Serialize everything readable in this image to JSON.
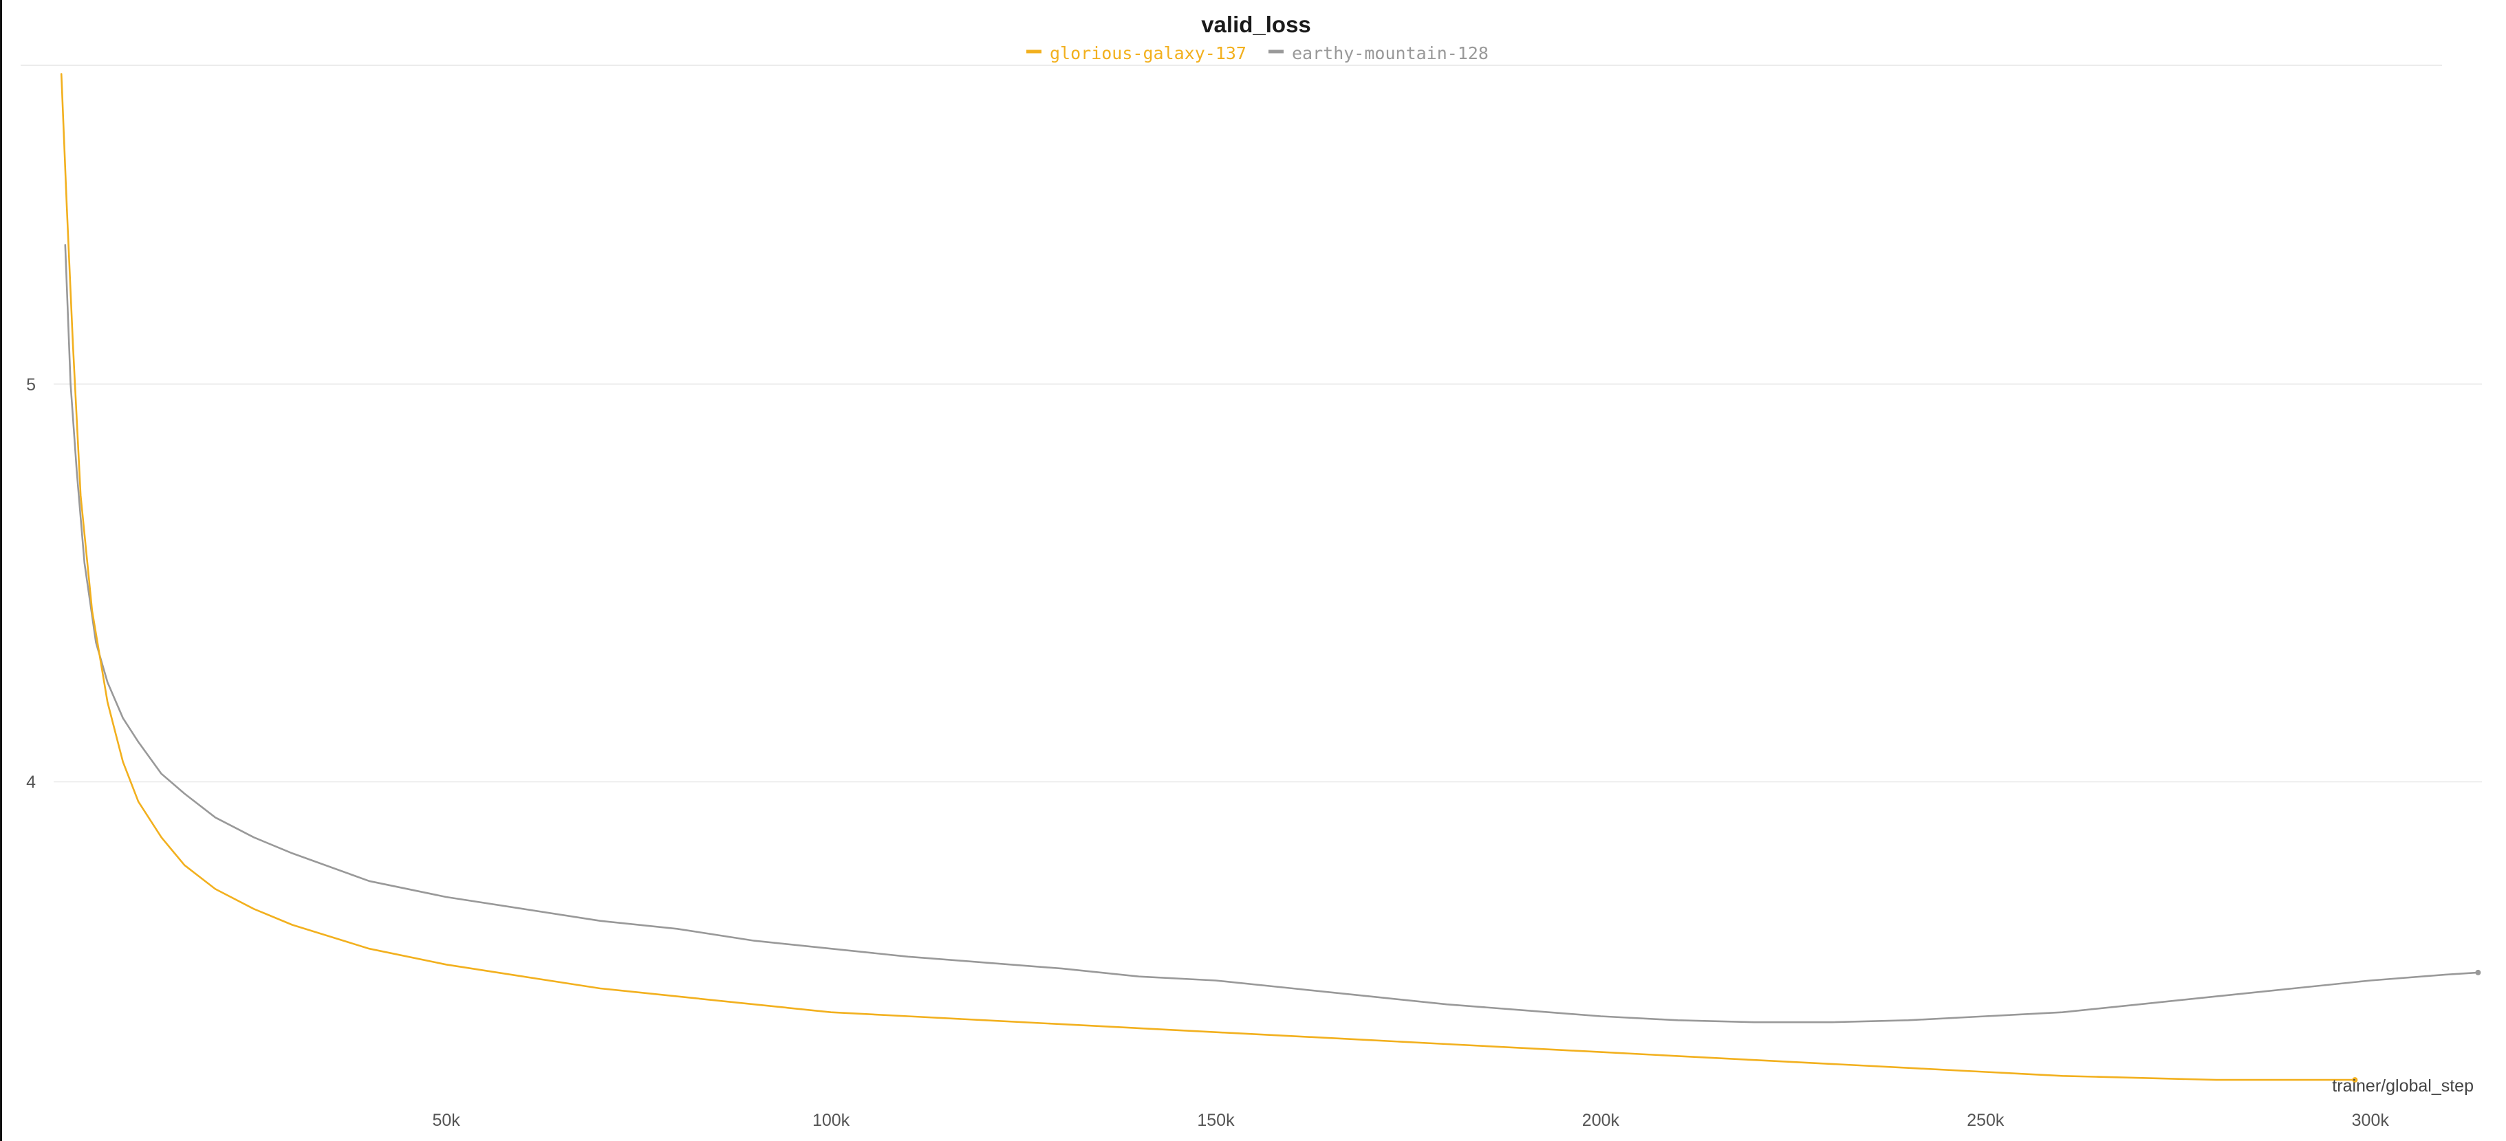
{
  "chart_data": {
    "type": "line",
    "title": "valid_loss",
    "xlabel": "trainer/global_step",
    "ylabel": "",
    "xlim": [
      -1000,
      314500
    ],
    "ylim": [
      3.2,
      5.8
    ],
    "x_ticks": [
      {
        "value": 50000,
        "label": "50k"
      },
      {
        "value": 100000,
        "label": "100k"
      },
      {
        "value": 150000,
        "label": "150k"
      },
      {
        "value": 200000,
        "label": "200k"
      },
      {
        "value": 250000,
        "label": "250k"
      },
      {
        "value": 300000,
        "label": "300k"
      }
    ],
    "y_ticks": [
      {
        "value": 5,
        "label": "5"
      },
      {
        "value": 4,
        "label": "4"
      }
    ],
    "grid": true,
    "legend_position": "top-center",
    "series": [
      {
        "name": "glorious-galaxy-137",
        "color": "#f2b01e",
        "points": [
          [
            0,
            5.78
          ],
          [
            700,
            5.45
          ],
          [
            1500,
            5.1
          ],
          [
            2500,
            4.72
          ],
          [
            4000,
            4.43
          ],
          [
            6000,
            4.2
          ],
          [
            8000,
            4.05
          ],
          [
            10000,
            3.95
          ],
          [
            13000,
            3.86
          ],
          [
            16000,
            3.79
          ],
          [
            20000,
            3.73
          ],
          [
            25000,
            3.68
          ],
          [
            30000,
            3.64
          ],
          [
            40000,
            3.58
          ],
          [
            50000,
            3.54
          ],
          [
            60000,
            3.51
          ],
          [
            70000,
            3.48
          ],
          [
            80000,
            3.46
          ],
          [
            90000,
            3.44
          ],
          [
            100000,
            3.42
          ],
          [
            110000,
            3.41
          ],
          [
            120000,
            3.4
          ],
          [
            130000,
            3.39
          ],
          [
            140000,
            3.38
          ],
          [
            150000,
            3.37
          ],
          [
            160000,
            3.36
          ],
          [
            170000,
            3.35
          ],
          [
            180000,
            3.34
          ],
          [
            190000,
            3.33
          ],
          [
            200000,
            3.32
          ],
          [
            210000,
            3.31
          ],
          [
            220000,
            3.3
          ],
          [
            230000,
            3.29
          ],
          [
            240000,
            3.28
          ],
          [
            250000,
            3.27
          ],
          [
            260000,
            3.26
          ],
          [
            270000,
            3.255
          ],
          [
            280000,
            3.25
          ],
          [
            290000,
            3.25
          ],
          [
            298000,
            3.25
          ]
        ]
      },
      {
        "name": "earthy-mountain-128",
        "color": "#999999",
        "points": [
          [
            500,
            5.35
          ],
          [
            1200,
            5.0
          ],
          [
            2000,
            4.78
          ],
          [
            3000,
            4.55
          ],
          [
            4500,
            4.35
          ],
          [
            6000,
            4.25
          ],
          [
            8000,
            4.16
          ],
          [
            10000,
            4.1
          ],
          [
            13000,
            4.02
          ],
          [
            16000,
            3.97
          ],
          [
            20000,
            3.91
          ],
          [
            25000,
            3.86
          ],
          [
            30000,
            3.82
          ],
          [
            40000,
            3.75
          ],
          [
            50000,
            3.71
          ],
          [
            60000,
            3.68
          ],
          [
            70000,
            3.65
          ],
          [
            80000,
            3.63
          ],
          [
            90000,
            3.6
          ],
          [
            100000,
            3.58
          ],
          [
            110000,
            3.56
          ],
          [
            120000,
            3.545
          ],
          [
            130000,
            3.53
          ],
          [
            140000,
            3.51
          ],
          [
            150000,
            3.5
          ],
          [
            160000,
            3.48
          ],
          [
            170000,
            3.46
          ],
          [
            180000,
            3.44
          ],
          [
            190000,
            3.425
          ],
          [
            200000,
            3.41
          ],
          [
            210000,
            3.4
          ],
          [
            220000,
            3.395
          ],
          [
            230000,
            3.395
          ],
          [
            240000,
            3.4
          ],
          [
            250000,
            3.41
          ],
          [
            260000,
            3.42
          ],
          [
            270000,
            3.44
          ],
          [
            280000,
            3.46
          ],
          [
            290000,
            3.48
          ],
          [
            300000,
            3.5
          ],
          [
            310000,
            3.515
          ],
          [
            314000,
            3.52
          ]
        ]
      }
    ]
  }
}
